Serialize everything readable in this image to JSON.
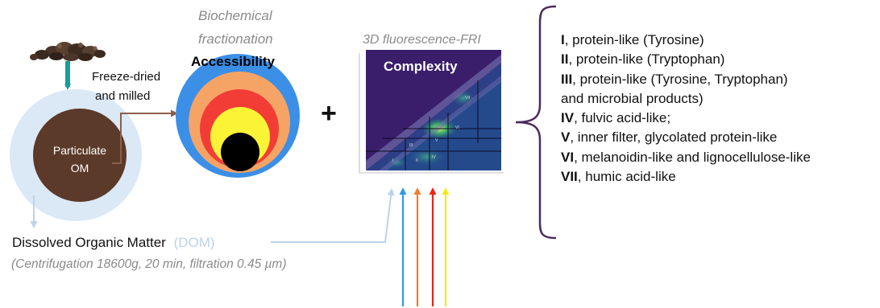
{
  "labels": {
    "biochemical": "Biochemical",
    "fractionation": "fractionation",
    "accessibility": "Accessibility",
    "fluorescence": "3D fluorescence-FRI",
    "complexity": "Complexity",
    "freeze_line1": "Freeze-dried",
    "freeze_line2": "and milled",
    "particulate_line1": "Particulate",
    "particulate_line2": "OM",
    "dom_text": "Dissolved Organic Matter",
    "dom_abbrev": "(DOM)",
    "centrifugation": "(Centrifugation  18600g, 20 min, filtration 0.45 µm)",
    "plus": "+"
  },
  "plot_regions": [
    "I",
    "II",
    "III",
    "IV",
    "V",
    "VI",
    "VII"
  ],
  "legend": [
    {
      "numeral": "I",
      "text": ", protein-like (Tyrosine)"
    },
    {
      "numeral": "II",
      "text": ", protein-like (Tryptophan)"
    },
    {
      "numeral": "III",
      "text": ", protein-like (Tyrosine, Tryptophan)"
    },
    {
      "numeral": "",
      "text": "and microbial products)"
    },
    {
      "numeral": "IV",
      "text": ", fulvic acid-like;"
    },
    {
      "numeral": "V",
      "text": ", inner filter, glycolated protein-like"
    },
    {
      "numeral": "VI",
      "text": ", melanoidin-like and lignocellulose-like"
    },
    {
      "numeral": "VII",
      "text": ", humic acid-like"
    }
  ],
  "colors": {
    "teal_arrow": "#1a9e96",
    "dom_light_blue": "#bcd3ea",
    "particle_brown": "#5b3a29",
    "ring_blue": "#3b8fe6",
    "ring_orange": "#f6a465",
    "ring_red": "#f13d35",
    "ring_yellow": "#fbf335",
    "core_black": "#000000",
    "plot_bg": "#3a1e6b",
    "bracket_purple": "#4b2b5c",
    "arrow_blue": "#2e9be6",
    "arrow_orange": "#f07d2e",
    "arrow_red": "#e8231a",
    "arrow_yellow": "#f4e81c"
  }
}
